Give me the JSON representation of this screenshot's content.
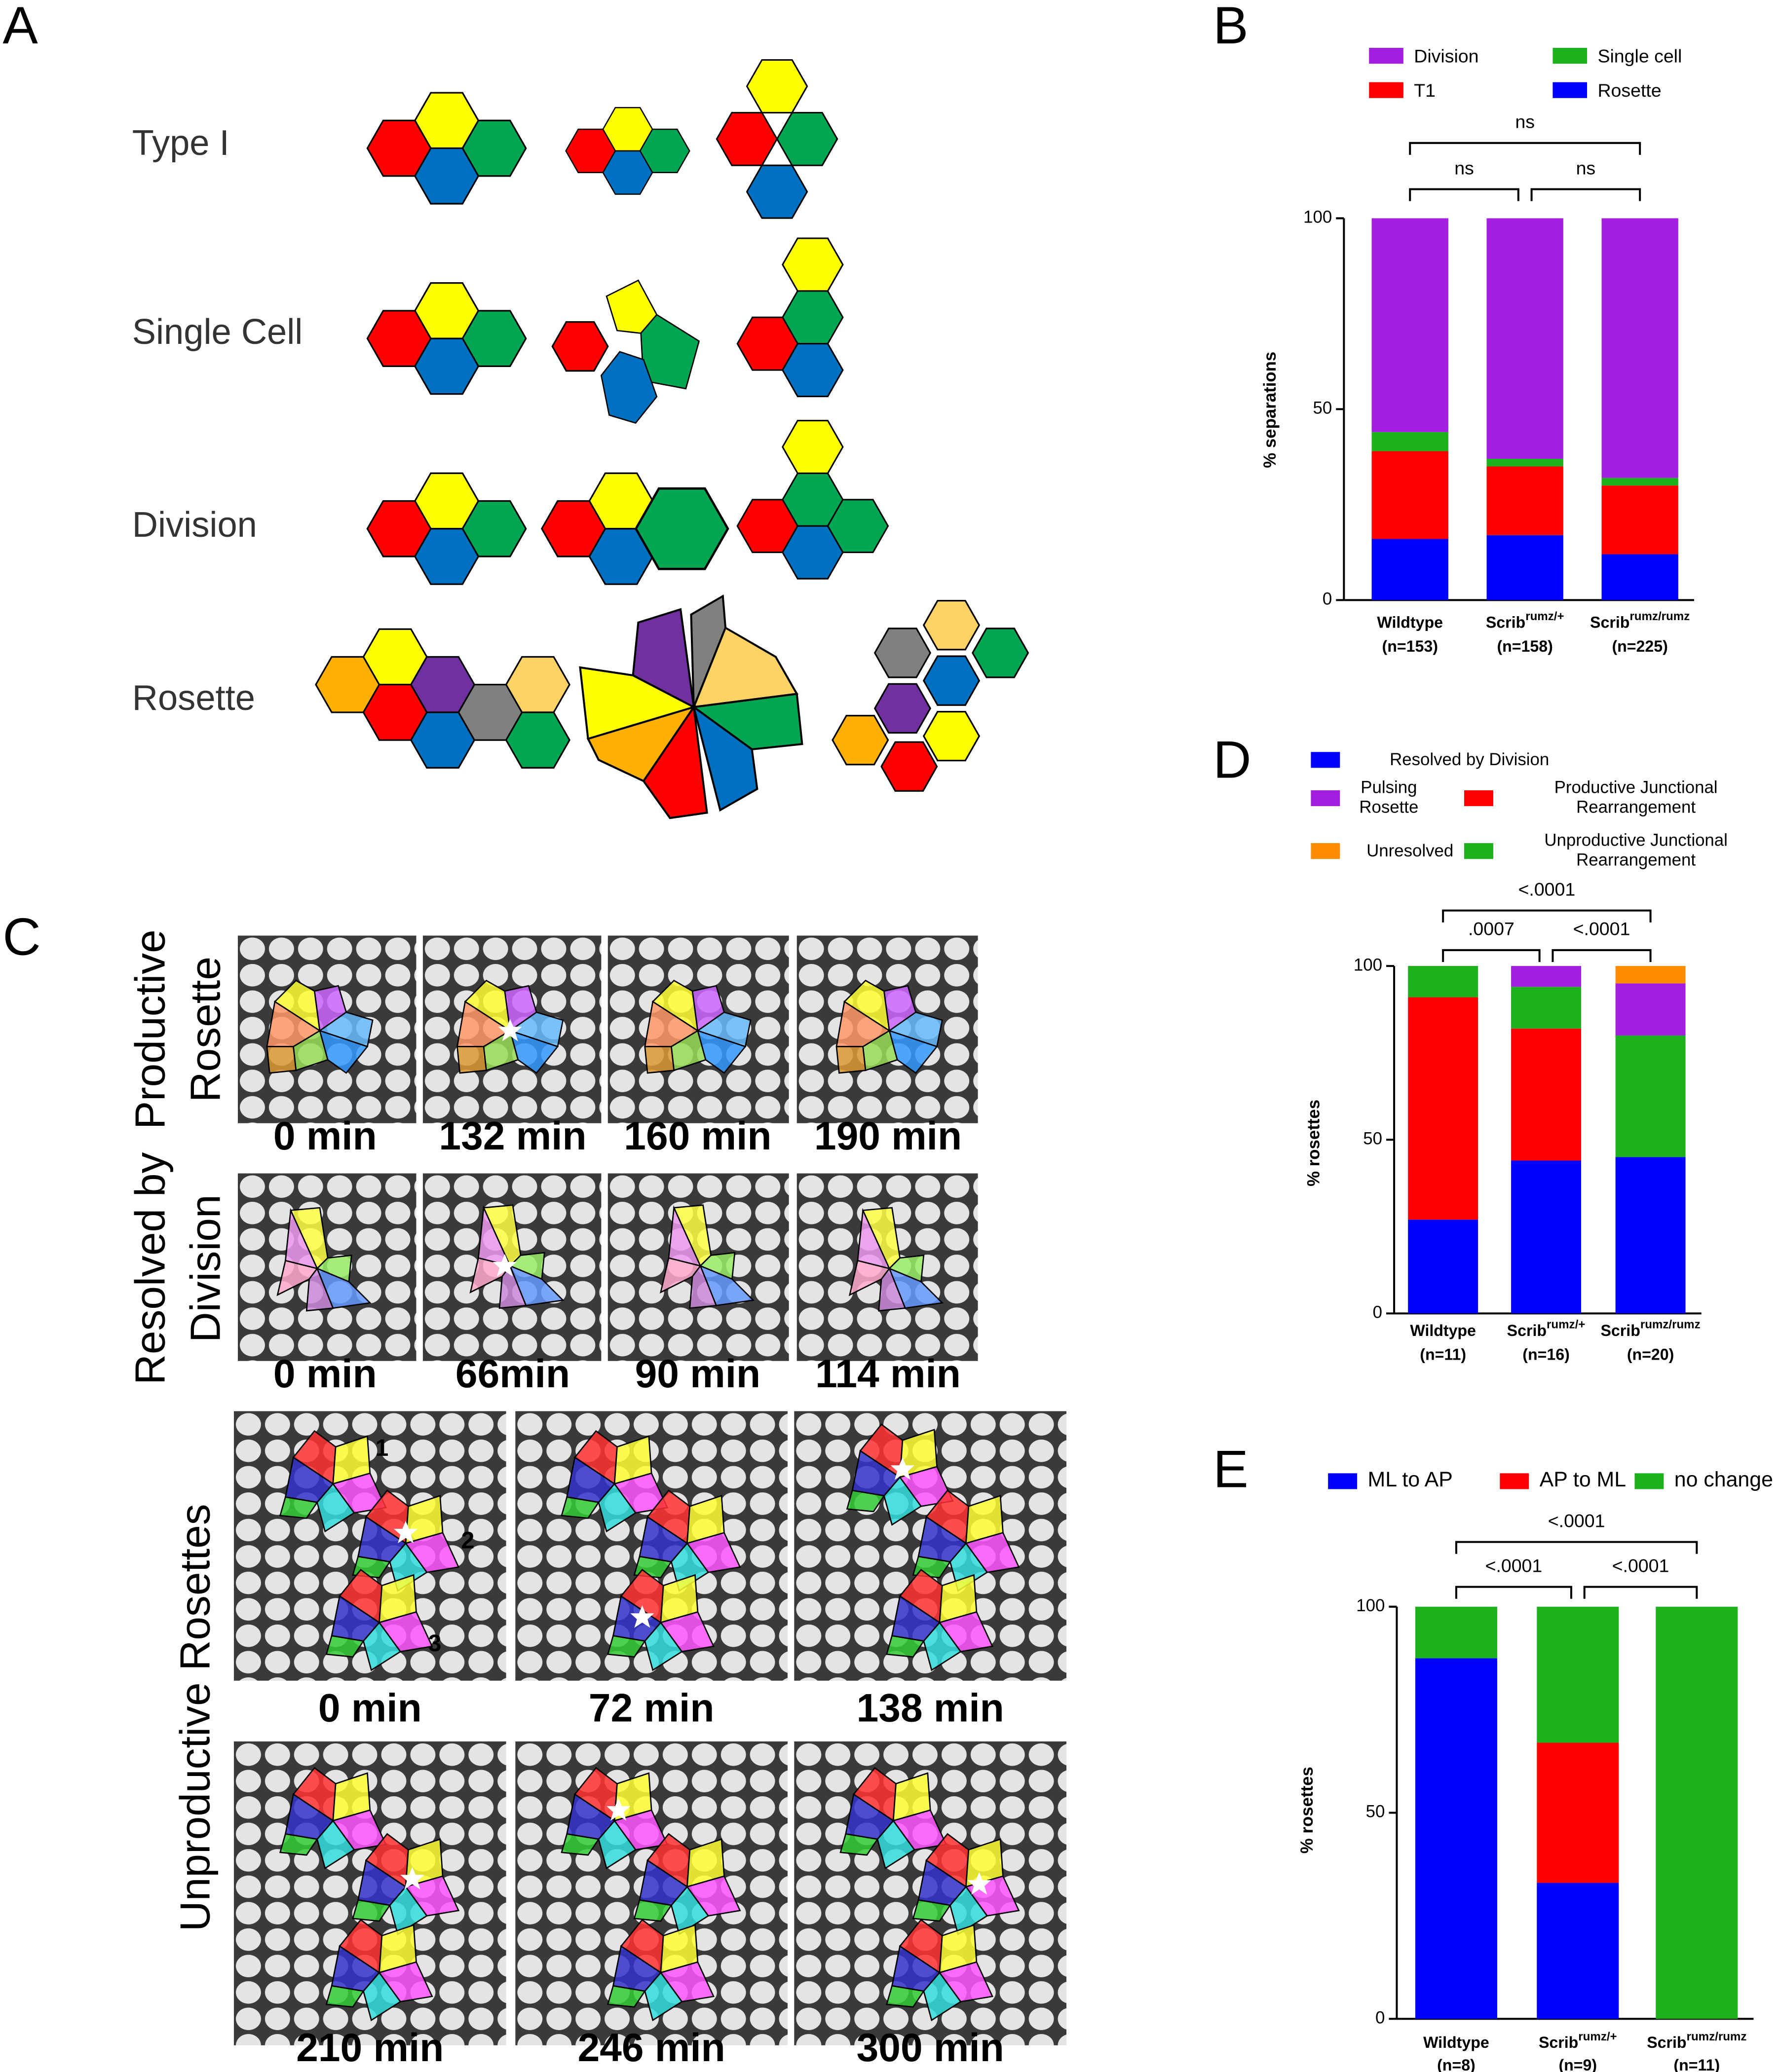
{
  "panel_labels": {
    "a": "A",
    "b": "B",
    "c": "C",
    "d": "D",
    "e": "E"
  },
  "panel_a": {
    "rows": [
      "Type I",
      "Single Cell",
      "Division",
      "Rosette"
    ]
  },
  "panel_c": {
    "rows": [
      {
        "label": [
          "Productive",
          "Rosette"
        ],
        "times": [
          "0 min",
          "132 min",
          "160 min",
          "190 min"
        ]
      },
      {
        "label": [
          "Resolved by",
          "Division"
        ],
        "times": [
          "0 min",
          "66min",
          "90 min",
          "114 min"
        ]
      },
      {
        "label": [
          "Unproductive Rosettes"
        ],
        "times": [
          "0 min",
          "72 min",
          "138 min",
          "210 min",
          "246 min",
          "300 min"
        ]
      }
    ],
    "rosette_numbers": [
      "1",
      "2",
      "3"
    ]
  },
  "chart_data": [
    {
      "type": "stacked_bar",
      "ylabel": "% separations",
      "categories": [
        {
          "name": "Wildtype",
          "n": "(n=153)"
        },
        {
          "name": "Scrib",
          "superscript": "rumz/+",
          "n": "(n=158)"
        },
        {
          "name": "Scrib",
          "superscript": "rumz/rumz",
          "n": "(n=225)"
        }
      ],
      "series": [
        {
          "name": "Rosette",
          "color": "#0000ff",
          "values": [
            16,
            17,
            12
          ]
        },
        {
          "name": "T1",
          "color": "#ff0000",
          "values": [
            23,
            18,
            18
          ]
        },
        {
          "name": "Single cell",
          "color": "#1db21d",
          "values": [
            5,
            2,
            2
          ]
        },
        {
          "name": "Division",
          "color": "#a31fe0",
          "values": [
            56,
            63,
            68
          ]
        }
      ],
      "ylim": [
        0,
        100
      ],
      "yticks": [
        0,
        50,
        100
      ],
      "comparisons": [
        {
          "pair": [
            0,
            2
          ],
          "label": "ns"
        },
        {
          "pair": [
            0,
            1
          ],
          "label": "ns"
        },
        {
          "pair": [
            1,
            2
          ],
          "label": "ns"
        }
      ]
    },
    {
      "type": "stacked_bar",
      "ylabel": "% rosettes",
      "categories": [
        {
          "name": "Wildtype",
          "n": "(n=11)"
        },
        {
          "name": "Scrib",
          "superscript": "rumz/+",
          "n": "(n=16)"
        },
        {
          "name": "Scrib",
          "superscript": "rumz/rumz",
          "n": "(n=20)"
        }
      ],
      "series": [
        {
          "name": "Resolved by Division",
          "color": "#0000ff",
          "values": [
            27,
            44,
            45
          ]
        },
        {
          "name": "Productive Junctional Rearrangement",
          "color": "#ff0000",
          "values": [
            64,
            38,
            0
          ]
        },
        {
          "name": "Unproductive Junctional Rearrangement",
          "color": "#1db21d",
          "values": [
            9,
            12,
            35
          ]
        },
        {
          "name": "Pulsing Rosette",
          "color": "#a31fe0",
          "values": [
            0,
            6,
            15
          ]
        },
        {
          "name": "Unresolved",
          "color": "#ff8c00",
          "values": [
            0,
            0,
            5
          ]
        }
      ],
      "ylim": [
        0,
        100
      ],
      "yticks": [
        0,
        50,
        100
      ],
      "comparisons": [
        {
          "pair": [
            0,
            2
          ],
          "label": "<.0001"
        },
        {
          "pair": [
            0,
            1
          ],
          "label": ".0007"
        },
        {
          "pair": [
            1,
            2
          ],
          "label": "<.0001"
        }
      ]
    },
    {
      "type": "stacked_bar",
      "ylabel": "% rosettes",
      "categories": [
        {
          "name": "Wildtype",
          "n": "(n=8)"
        },
        {
          "name": "Scrib",
          "superscript": "rumz/+",
          "n": "(n=9)"
        },
        {
          "name": "Scrib",
          "superscript": "rumz/rumz",
          "n": "(n=11)"
        }
      ],
      "series": [
        {
          "name": "ML to AP",
          "color": "#0000ff",
          "values": [
            87.5,
            33,
            0
          ]
        },
        {
          "name": "AP to ML",
          "color": "#ff0000",
          "values": [
            0,
            34,
            0
          ]
        },
        {
          "name": "no change",
          "color": "#1db21d",
          "values": [
            12.5,
            33,
            100
          ]
        }
      ],
      "ylim": [
        0,
        100
      ],
      "yticks": [
        0,
        50,
        100
      ],
      "comparisons": [
        {
          "pair": [
            0,
            2
          ],
          "label": "<.0001"
        },
        {
          "pair": [
            0,
            1
          ],
          "label": "<.0001"
        },
        {
          "pair": [
            1,
            2
          ],
          "label": "<.0001"
        }
      ]
    }
  ]
}
